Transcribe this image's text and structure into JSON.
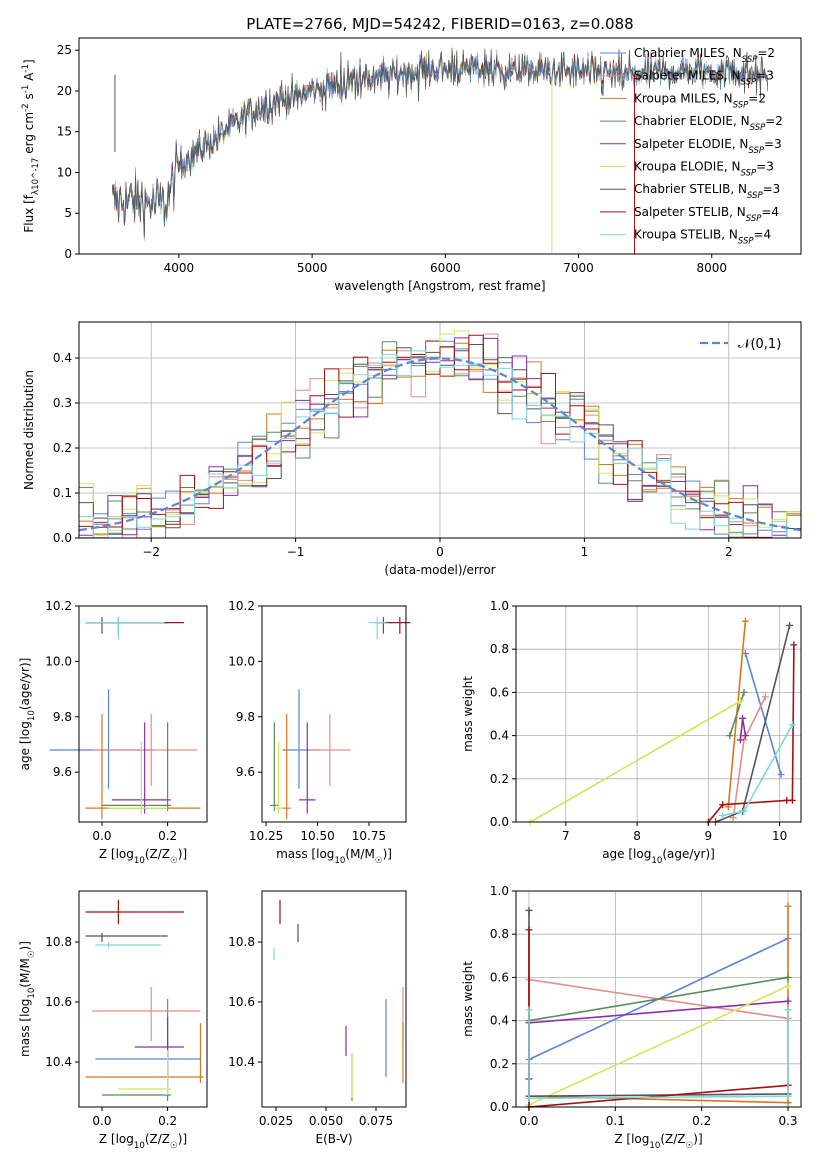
{
  "title": "PLATE=2766, MJD=54242, FIBERID=0163, z=0.088",
  "models": [
    {
      "label": "Chabrier MILES, N$_{SSP}$=2",
      "short": "Chabrier MILES",
      "nssp": "2",
      "color": "#5b86d8"
    },
    {
      "label": "Salpeter MILES, N$_{SSP}$=3",
      "short": "Salpeter MILES",
      "nssp": "3",
      "color": "#e68c8c"
    },
    {
      "label": "Kroupa MILES, N$_{SSP}$=2",
      "short": "Kroupa MILES",
      "nssp": "2",
      "color": "#d8781c"
    },
    {
      "label": "Chabrier ELODIE, N$_{SSP}$=2",
      "short": "Chabrier ELODIE",
      "nssp": "2",
      "color": "#5b8a5b"
    },
    {
      "label": "Salpeter ELODIE, N$_{SSP}$=3",
      "short": "Salpeter ELODIE",
      "nssp": "3",
      "color": "#8b2fa8"
    },
    {
      "label": "Kroupa ELODIE, N$_{SSP}$=3",
      "short": "Kroupa ELODIE",
      "nssp": "3",
      "color": "#cde85a"
    },
    {
      "label": "Chabrier STELIB, N$_{SSP}$=3",
      "short": "Chabrier STELIB",
      "nssp": "3",
      "color": "#555555"
    },
    {
      "label": "Salpeter STELIB, N$_{SSP}$=4",
      "short": "Salpeter STELIB",
      "nssp": "4",
      "color": "#a51010"
    },
    {
      "label": "Kroupa STELIB, N$_{SSP}$=4",
      "short": "Kroupa STELIB",
      "nssp": "4",
      "color": "#7ed8dc"
    }
  ],
  "chart_data": [
    {
      "id": "spectrum",
      "type": "line",
      "xlabel": "wavelength [Angstrom, rest frame]",
      "ylabel": "Flux [f_λ10^-17 erg cm^-2 s^-1 A^-1]",
      "xlim": [
        3250,
        8670
      ],
      "ylim": [
        0,
        26.5
      ],
      "xticks": [
        4000,
        5000,
        6000,
        7000,
        8000
      ],
      "yticks": [
        0,
        5,
        10,
        15,
        20,
        25
      ],
      "continuum": {
        "x": [
          3500,
          3700,
          3900,
          4000,
          4300,
          4600,
          5000,
          5400,
          5800,
          6200,
          6600,
          7000,
          7400,
          7800,
          8200,
          8400
        ],
        "y": [
          6.5,
          6.5,
          6.0,
          11.0,
          14.5,
          18.0,
          20.0,
          21.5,
          22.5,
          22.8,
          22.5,
          22.3,
          22.0,
          22.5,
          22.3,
          22.0
        ]
      },
      "spikes": [
        {
          "x": 6800,
          "y": 0.0,
          "model": "Kroupa ELODIE"
        },
        {
          "x": 7420,
          "y": 0.0,
          "model": "Salpeter STELIB"
        },
        {
          "x": 3520,
          "y": 12.5,
          "model": "Chabrier STELIB"
        }
      ]
    },
    {
      "id": "residuals",
      "type": "histogram",
      "xlabel": "(data-model)/error",
      "ylabel": "Normed distribution",
      "xlim": [
        -2.5,
        2.5
      ],
      "ylim": [
        0,
        0.48
      ],
      "xticks": [
        -2,
        -1,
        0,
        1,
        2
      ],
      "yticks": [
        0.0,
        0.1,
        0.2,
        0.3,
        0.4
      ],
      "reference": {
        "label": "𝒩(0,1)",
        "mean": 0,
        "sigma": 1,
        "color": "#5b86d8"
      },
      "bin_width": 0.1
    },
    {
      "id": "age_vs_Z",
      "type": "errorbar",
      "xlabel": "Z [log_10(Z/Z_☉)]",
      "ylabel": "age  [log_10(age/yr)]",
      "xlim": [
        -0.07,
        0.32
      ],
      "ylim": [
        9.42,
        10.2
      ],
      "xticks": [
        0.0,
        0.2
      ],
      "yticks": [
        9.6,
        9.8,
        10.0,
        10.2
      ],
      "points": [
        {
          "model": "Chabrier MILES",
          "x": 0.02,
          "xerr": [
            0.18,
            0.14
          ],
          "y": 9.68,
          "yerr": [
            0.14,
            0.22
          ]
        },
        {
          "model": "Salpeter MILES",
          "x": 0.15,
          "xerr": [
            0.18,
            0.14
          ],
          "y": 9.68,
          "yerr": [
            0.13,
            0.13
          ]
        },
        {
          "model": "Kroupa MILES",
          "x": 0.0,
          "xerr": [
            0.05,
            0.3
          ],
          "y": 9.47,
          "yerr": [
            0.04,
            0.34
          ]
        },
        {
          "model": "Chabrier ELODIE",
          "x": 0.2,
          "xerr": [
            0.2,
            0.01
          ],
          "y": 9.48,
          "yerr": [
            0.02,
            0.3
          ]
        },
        {
          "model": "Salpeter ELODIE",
          "x": 0.13,
          "xerr": [
            0.1,
            0.08
          ],
          "y": 9.5,
          "yerr": [
            0.05,
            0.28
          ]
        },
        {
          "model": "Kroupa ELODIE",
          "x": 0.12,
          "xerr": [
            0.1,
            0.08
          ],
          "y": 9.47,
          "yerr": [
            0.02,
            0.24
          ]
        },
        {
          "model": "Chabrier STELIB",
          "x": 0.0,
          "xerr": [
            0.05,
            0.2
          ],
          "y": 10.14,
          "yerr": [
            0.04,
            0.02
          ]
        },
        {
          "model": "Salpeter STELIB",
          "x": 0.05,
          "xerr": [
            0.1,
            0.2
          ],
          "y": 10.14,
          "yerr": [
            0.04,
            0.02
          ]
        },
        {
          "model": "Kroupa STELIB",
          "x": 0.05,
          "xerr": [
            0.1,
            0.14
          ],
          "y": 10.14,
          "yerr": [
            0.06,
            0.02
          ]
        }
      ]
    },
    {
      "id": "age_vs_mass",
      "type": "errorbar",
      "xlabel": "mass [log_10(M/M_☉)]",
      "ylabel": "",
      "xlim": [
        10.23,
        10.93
      ],
      "ylim": [
        9.42,
        10.2
      ],
      "xticks": [
        10.25,
        10.5,
        10.75
      ],
      "yticks": [
        9.6,
        9.8,
        10.0,
        10.2
      ],
      "points": [
        {
          "model": "Chabrier MILES",
          "x": 10.41,
          "xerr": [
            0.08,
            0.1
          ],
          "y": 9.68,
          "yerr": [
            0.14,
            0.22
          ]
        },
        {
          "model": "Salpeter MILES",
          "x": 10.56,
          "xerr": [
            0.1,
            0.1
          ],
          "y": 9.68,
          "yerr": [
            0.13,
            0.13
          ]
        },
        {
          "model": "Kroupa MILES",
          "x": 10.35,
          "xerr": [
            0.02,
            0.02
          ],
          "y": 9.47,
          "yerr": [
            0.04,
            0.34
          ]
        },
        {
          "model": "Chabrier ELODIE",
          "x": 10.29,
          "xerr": [
            0.02,
            0.02
          ],
          "y": 9.48,
          "yerr": [
            0.02,
            0.3
          ]
        },
        {
          "model": "Salpeter ELODIE",
          "x": 10.45,
          "xerr": [
            0.04,
            0.04
          ],
          "y": 9.5,
          "yerr": [
            0.05,
            0.28
          ]
        },
        {
          "model": "Kroupa ELODIE",
          "x": 10.31,
          "xerr": [
            0.02,
            0.02
          ],
          "y": 9.47,
          "yerr": [
            0.02,
            0.24
          ]
        },
        {
          "model": "Chabrier STELIB",
          "x": 10.82,
          "xerr": [
            0.04,
            0.04
          ],
          "y": 10.14,
          "yerr": [
            0.04,
            0.02
          ]
        },
        {
          "model": "Salpeter STELIB",
          "x": 10.9,
          "xerr": [
            0.05,
            0.05
          ],
          "y": 10.14,
          "yerr": [
            0.04,
            0.02
          ]
        },
        {
          "model": "Kroupa STELIB",
          "x": 10.79,
          "xerr": [
            0.04,
            0.04
          ],
          "y": 10.14,
          "yerr": [
            0.06,
            0.02
          ]
        }
      ]
    },
    {
      "id": "weight_vs_age",
      "type": "line",
      "xlabel": "age  [log_10(age/yr)]",
      "ylabel": "mass weight",
      "xlim": [
        6.3,
        10.3
      ],
      "ylim": [
        0,
        1
      ],
      "xticks": [
        7,
        8,
        9,
        10
      ],
      "yticks": [
        0.0,
        0.2,
        0.4,
        0.6,
        0.8,
        1.0
      ],
      "series": [
        {
          "model": "Chabrier MILES",
          "x": [
            9.52,
            10.02
          ],
          "y": [
            0.78,
            0.22
          ]
        },
        {
          "model": "Salpeter MILES",
          "x": [
            9.35,
            9.5,
            9.8
          ],
          "y": [
            0.02,
            0.38,
            0.58
          ]
        },
        {
          "model": "Kroupa MILES",
          "x": [
            9.28,
            9.52
          ],
          "y": [
            0.07,
            0.93
          ]
        },
        {
          "model": "Chabrier ELODIE",
          "x": [
            9.3,
            9.5
          ],
          "y": [
            0.4,
            0.6
          ]
        },
        {
          "model": "Salpeter ELODIE",
          "x": [
            9.45,
            9.48,
            9.52
          ],
          "y": [
            0.38,
            0.48,
            0.4
          ]
        },
        {
          "model": "Kroupa ELODIE",
          "x": [
            6.5,
            9.45
          ],
          "y": [
            0.0,
            0.56
          ]
        },
        {
          "model": "Chabrier STELIB",
          "x": [
            9.1,
            9.48,
            10.14
          ],
          "y": [
            0.0,
            0.05,
            0.91
          ]
        },
        {
          "model": "Salpeter STELIB",
          "x": [
            9.0,
            9.2,
            10.1,
            10.18,
            10.2
          ],
          "y": [
            0.0,
            0.08,
            0.1,
            0.1,
            0.82
          ]
        },
        {
          "model": "Kroupa STELIB",
          "x": [
            9.2,
            9.5,
            10.18
          ],
          "y": [
            0.03,
            0.05,
            0.45
          ]
        }
      ]
    },
    {
      "id": "mass_vs_Z",
      "type": "errorbar",
      "xlabel": "Z [log_10(Z/Z_☉)]",
      "ylabel": "mass [log_10(M/M_☉)]",
      "xlim": [
        -0.07,
        0.32
      ],
      "ylim": [
        10.25,
        10.97
      ],
      "xticks": [
        0.0,
        0.2
      ],
      "yticks": [
        10.4,
        10.6,
        10.8
      ],
      "points": [
        {
          "model": "Chabrier MILES",
          "x": 0.2,
          "xerr": [
            0.22,
            0.1
          ],
          "y": 10.41,
          "yerr": [
            0.06,
            0.2
          ]
        },
        {
          "model": "Salpeter MILES",
          "x": 0.15,
          "xerr": [
            0.18,
            0.15
          ],
          "y": 10.57,
          "yerr": [
            0.1,
            0.08
          ]
        },
        {
          "model": "Kroupa MILES",
          "x": 0.3,
          "xerr": [
            0.35,
            0.01
          ],
          "y": 10.35,
          "yerr": [
            0.02,
            0.18
          ]
        },
        {
          "model": "Chabrier ELODIE",
          "x": 0.2,
          "xerr": [
            0.2,
            0.01
          ],
          "y": 10.29,
          "yerr": [
            0.02,
            0.14
          ]
        },
        {
          "model": "Salpeter ELODIE",
          "x": 0.2,
          "xerr": [
            0.1,
            0.05
          ],
          "y": 10.45,
          "yerr": [
            0.04,
            0.1
          ]
        },
        {
          "model": "Kroupa ELODIE",
          "x": 0.2,
          "xerr": [
            0.15,
            0.01
          ],
          "y": 10.31,
          "yerr": [
            0.02,
            0.13
          ]
        },
        {
          "model": "Chabrier STELIB",
          "x": 0.0,
          "xerr": [
            0.05,
            0.2
          ],
          "y": 10.82,
          "yerr": [
            0.02,
            0.01
          ]
        },
        {
          "model": "Salpeter STELIB",
          "x": 0.05,
          "xerr": [
            0.1,
            0.2
          ],
          "y": 10.9,
          "yerr": [
            0.04,
            0.04
          ]
        },
        {
          "model": "Kroupa STELIB",
          "x": 0.02,
          "xerr": [
            0.04,
            0.16
          ],
          "y": 10.79,
          "yerr": [
            0.01,
            0.01
          ]
        }
      ]
    },
    {
      "id": "mass_vs_ebv",
      "type": "errorbar",
      "xlabel": "E(B-V)",
      "ylabel": "",
      "xlim": [
        0.018,
        0.09
      ],
      "ylim": [
        10.25,
        10.97
      ],
      "xticks": [
        0.025,
        0.05,
        0.075
      ],
      "yticks": [
        10.4,
        10.6,
        10.8
      ],
      "points": [
        {
          "model": "Chabrier MILES",
          "x": 0.08,
          "xerr": [
            0,
            0
          ],
          "y": 10.41,
          "yerr": [
            0.06,
            0.2
          ]
        },
        {
          "model": "Salpeter MILES",
          "x": 0.0885,
          "xerr": [
            0,
            0
          ],
          "y": 10.57,
          "yerr": [
            0.1,
            0.08
          ]
        },
        {
          "model": "Kroupa MILES",
          "x": 0.0885,
          "xerr": [
            0,
            0
          ],
          "y": 10.43,
          "yerr": [
            0.1,
            0.1
          ]
        },
        {
          "model": "Chabrier ELODIE",
          "x": 0.063,
          "xerr": [
            0,
            0
          ],
          "y": 10.29,
          "yerr": [
            0.02,
            0.14
          ]
        },
        {
          "model": "Salpeter ELODIE",
          "x": 0.06,
          "xerr": [
            0,
            0
          ],
          "y": 10.47,
          "yerr": [
            0.05,
            0.05
          ]
        },
        {
          "model": "Kroupa ELODIE",
          "x": 0.063,
          "xerr": [
            0,
            0
          ],
          "y": 10.34,
          "yerr": [
            0.06,
            0.09
          ]
        },
        {
          "model": "Chabrier STELIB",
          "x": 0.036,
          "xerr": [
            0,
            0
          ],
          "y": 10.83,
          "yerr": [
            0.03,
            0.03
          ]
        },
        {
          "model": "Salpeter STELIB",
          "x": 0.027,
          "xerr": [
            0,
            0
          ],
          "y": 10.9,
          "yerr": [
            0.04,
            0.04
          ]
        },
        {
          "model": "Kroupa STELIB",
          "x": 0.024,
          "xerr": [
            0,
            0
          ],
          "y": 10.76,
          "yerr": [
            0.02,
            0.02
          ]
        }
      ]
    },
    {
      "id": "weight_vs_Z",
      "type": "line",
      "xlabel": "Z [log_10(Z/Z_☉)]",
      "ylabel": "mass weight",
      "xlim": [
        -0.015,
        0.315
      ],
      "ylim": [
        0,
        1
      ],
      "xticks": [
        0.0,
        0.1,
        0.2,
        0.3
      ],
      "yticks": [
        0.0,
        0.2,
        0.4,
        0.6,
        0.8,
        1.0
      ],
      "series": [
        {
          "model": "Chabrier MILES",
          "x": [
            0.0,
            0.3
          ],
          "y": [
            0.22,
            0.78
          ]
        },
        {
          "model": "Salpeter MILES",
          "x": [
            0.0,
            0.3
          ],
          "y": [
            0.59,
            0.41
          ]
        },
        {
          "model": "Kroupa MILES",
          "x": [
            0.0,
            0.3,
            0.3
          ],
          "y": [
            0.05,
            0.02,
            0.93
          ]
        },
        {
          "model": "Chabrier ELODIE",
          "x": [
            0.0,
            0.3
          ],
          "y": [
            0.4,
            0.6
          ]
        },
        {
          "model": "Salpeter ELODIE",
          "x": [
            0.0,
            0.0,
            0.3
          ],
          "y": [
            0.13,
            0.39,
            0.49
          ]
        },
        {
          "model": "Kroupa ELODIE",
          "x": [
            0.0,
            0.3
          ],
          "y": [
            0.01,
            0.56
          ]
        },
        {
          "model": "Chabrier STELIB",
          "x": [
            0.0,
            0.0,
            0.3
          ],
          "y": [
            0.91,
            0.05,
            0.06
          ]
        },
        {
          "model": "Salpeter STELIB",
          "x": [
            0.0,
            0.0,
            0.3,
            0.3
          ],
          "y": [
            0.82,
            0.0,
            0.1,
            0.1
          ]
        },
        {
          "model": "Kroupa STELIB",
          "x": [
            0.0,
            0.0,
            0.3,
            0.3
          ],
          "y": [
            0.45,
            0.04,
            0.05,
            0.45
          ]
        }
      ]
    }
  ]
}
